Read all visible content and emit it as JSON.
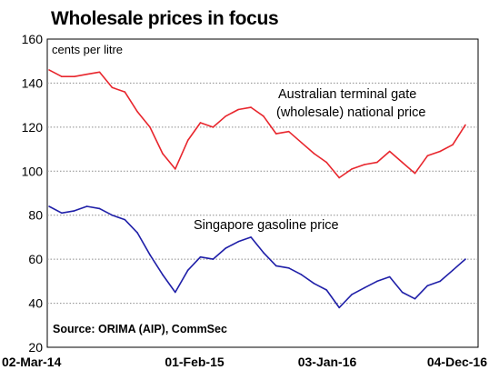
{
  "chart_data": {
    "type": "line",
    "title": "Wholesale prices in focus",
    "ylabel": "cents per litre",
    "ylim": [
      20,
      160
    ],
    "yticks": [
      20,
      40,
      60,
      80,
      100,
      120,
      140,
      160
    ],
    "x_tick_labels": [
      "02-Mar-14",
      "01-Feb-15",
      "03-Jan-16",
      "04-Dec-16"
    ],
    "grid": true,
    "source": "Source: ORIMA (AIP), CommSec",
    "annotations": [
      "Australian terminal gate",
      "(wholesale) national price",
      "Singapore gasoline price"
    ],
    "colors": {
      "red": "#e8262d",
      "blue": "#1f1fa8",
      "grid": "#8c8c8c"
    },
    "x": [
      "2014-03",
      "2014-04",
      "2014-05",
      "2014-06",
      "2014-07",
      "2014-08",
      "2014-09",
      "2014-10",
      "2014-11",
      "2014-12",
      "2015-01",
      "2015-02",
      "2015-03",
      "2015-04",
      "2015-05",
      "2015-06",
      "2015-07",
      "2015-08",
      "2015-09",
      "2015-10",
      "2015-11",
      "2015-12",
      "2016-01",
      "2016-02",
      "2016-03",
      "2016-04",
      "2016-05",
      "2016-06",
      "2016-07",
      "2016-08",
      "2016-09",
      "2016-10",
      "2016-11",
      "2016-12"
    ],
    "series": [
      {
        "name": "Australian terminal gate (wholesale) national price",
        "color": "#e8262d",
        "values": [
          146,
          143,
          143,
          144,
          145,
          138,
          136,
          127,
          120,
          108,
          101,
          114,
          122,
          120,
          125,
          128,
          129,
          125,
          117,
          118,
          113,
          108,
          104,
          97,
          101,
          103,
          104,
          109,
          104,
          99,
          107,
          109,
          112,
          121
        ]
      },
      {
        "name": "Singapore gasoline price",
        "color": "#1f1fa8",
        "values": [
          84,
          81,
          82,
          84,
          83,
          80,
          78,
          72,
          62,
          53,
          45,
          55,
          61,
          60,
          65,
          68,
          70,
          63,
          57,
          56,
          53,
          49,
          46,
          38,
          44,
          47,
          50,
          52,
          45,
          42,
          48,
          50,
          55,
          60
        ]
      }
    ]
  }
}
